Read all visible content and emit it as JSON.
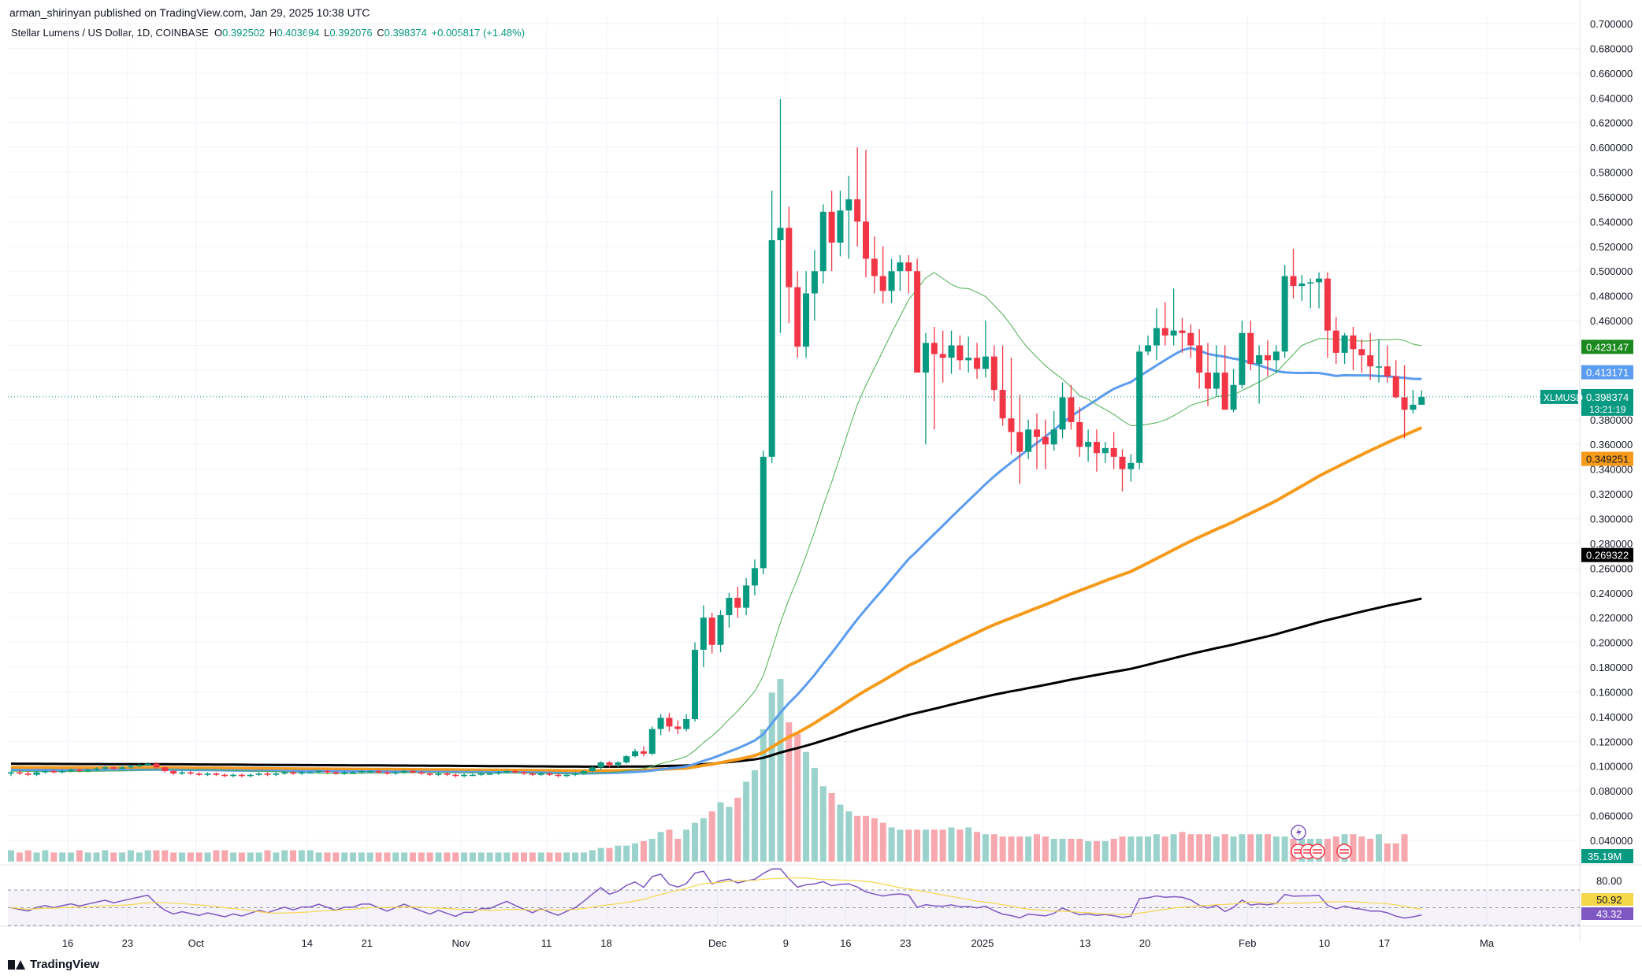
{
  "publisher_line": "arman_shirinyan published on TradingView.com, Jan 29, 2025 10:38 UTC",
  "legend": {
    "symbol": "Stellar Lumens / US Dollar, 1D, COINBASE",
    "open_label": "O",
    "open": "0.392502",
    "high_label": "H",
    "high": "0.403694",
    "low_label": "L",
    "low": "0.392076",
    "close_label": "C",
    "close": "0.398374",
    "change": "+0.005817 (+1.48%)"
  },
  "footer": {
    "brand": "TradingView"
  },
  "colors": {
    "up": "#089981",
    "down": "#F23645",
    "vol_up": "#9BD3CC",
    "vol_down": "#F6A8AE",
    "ma_thin": "#4CAF50",
    "ma_blue": "#5B9CF0",
    "ma_orange": "#F59A1A",
    "ma_black": "#000000",
    "rsi": "#7E57C2",
    "rsi_ma": "#F5D74A",
    "grid": "#F0F3FA"
  },
  "chart_data": {
    "type": "candlestick",
    "symbol": "XLMUSD",
    "y_axis": {
      "ylim": [
        0.06,
        0.7
      ],
      "ticks": [
        "0.700000",
        "0.680000",
        "0.660000",
        "0.640000",
        "0.620000",
        "0.600000",
        "0.580000",
        "0.560000",
        "0.540000",
        "0.520000",
        "0.500000",
        "0.480000",
        "0.460000",
        "0.440000",
        "0.420000",
        "0.400000",
        "0.380000",
        "0.360000",
        "0.340000",
        "0.320000",
        "0.300000",
        "0.280000",
        "0.260000",
        "0.240000",
        "0.220000",
        "0.200000",
        "0.180000",
        "0.160000",
        "0.140000",
        "0.120000",
        "0.100000",
        "0.080000",
        "0.060000",
        "0.040000"
      ]
    },
    "x_axis": {
      "labels": [
        "16",
        "23",
        "Oct",
        "14",
        "21",
        "Nov",
        "11",
        "18",
        "Dec",
        "9",
        "16",
        "23",
        "2025",
        "13",
        "20",
        "Feb",
        "10",
        "17",
        "Ma"
      ],
      "label_dates": [
        "2024-09-16",
        "2024-09-23",
        "2024-10-01",
        "2024-10-14",
        "2024-10-21",
        "2024-11-01",
        "2024-11-11",
        "2024-11-18",
        "2024-12-01",
        "2024-12-09",
        "2024-12-16",
        "2024-12-23",
        "2025-01-01",
        "2025-01-13",
        "2025-01-20",
        "2025-02-01",
        "2025-02-10",
        "2025-02-17",
        "2025-03-01"
      ],
      "range": [
        "2024-09-09",
        "2025-03-03"
      ]
    },
    "candles_ohlc": [
      [
        0.094,
        0.096,
        0.092,
        0.095
      ],
      [
        0.095,
        0.097,
        0.093,
        0.094
      ],
      [
        0.094,
        0.096,
        0.092,
        0.093
      ],
      [
        0.093,
        0.096,
        0.092,
        0.095
      ],
      [
        0.095,
        0.097,
        0.094,
        0.096
      ],
      [
        0.096,
        0.097,
        0.094,
        0.095
      ],
      [
        0.095,
        0.097,
        0.094,
        0.096
      ],
      [
        0.096,
        0.098,
        0.095,
        0.097
      ],
      [
        0.097,
        0.098,
        0.095,
        0.096
      ],
      [
        0.096,
        0.098,
        0.095,
        0.097
      ],
      [
        0.097,
        0.099,
        0.096,
        0.098
      ],
      [
        0.098,
        0.1,
        0.097,
        0.099
      ],
      [
        0.099,
        0.1,
        0.097,
        0.098
      ],
      [
        0.098,
        0.1,
        0.097,
        0.099
      ],
      [
        0.099,
        0.101,
        0.098,
        0.1
      ],
      [
        0.1,
        0.102,
        0.099,
        0.101
      ],
      [
        0.101,
        0.103,
        0.1,
        0.102
      ],
      [
        0.102,
        0.103,
        0.098,
        0.099
      ],
      [
        0.099,
        0.1,
        0.095,
        0.096
      ],
      [
        0.096,
        0.097,
        0.093,
        0.094
      ],
      [
        0.094,
        0.096,
        0.093,
        0.095
      ],
      [
        0.095,
        0.096,
        0.093,
        0.094
      ],
      [
        0.094,
        0.095,
        0.092,
        0.093
      ],
      [
        0.093,
        0.095,
        0.092,
        0.094
      ],
      [
        0.094,
        0.095,
        0.092,
        0.093
      ],
      [
        0.093,
        0.094,
        0.091,
        0.092
      ],
      [
        0.092,
        0.094,
        0.091,
        0.093
      ],
      [
        0.093,
        0.094,
        0.091,
        0.092
      ],
      [
        0.092,
        0.094,
        0.091,
        0.093
      ],
      [
        0.093,
        0.095,
        0.092,
        0.094
      ],
      [
        0.094,
        0.095,
        0.092,
        0.093
      ],
      [
        0.093,
        0.095,
        0.092,
        0.094
      ],
      [
        0.094,
        0.096,
        0.093,
        0.095
      ],
      [
        0.095,
        0.096,
        0.093,
        0.094
      ],
      [
        0.094,
        0.096,
        0.093,
        0.095
      ],
      [
        0.095,
        0.096,
        0.094,
        0.095
      ],
      [
        0.095,
        0.097,
        0.094,
        0.096
      ],
      [
        0.096,
        0.097,
        0.094,
        0.095
      ],
      [
        0.095,
        0.096,
        0.093,
        0.094
      ],
      [
        0.094,
        0.096,
        0.093,
        0.095
      ],
      [
        0.095,
        0.096,
        0.094,
        0.095
      ],
      [
        0.095,
        0.097,
        0.094,
        0.096
      ],
      [
        0.096,
        0.097,
        0.095,
        0.096
      ],
      [
        0.096,
        0.097,
        0.094,
        0.095
      ],
      [
        0.095,
        0.096,
        0.093,
        0.094
      ],
      [
        0.094,
        0.096,
        0.093,
        0.095
      ],
      [
        0.095,
        0.097,
        0.094,
        0.096
      ],
      [
        0.096,
        0.097,
        0.094,
        0.095
      ],
      [
        0.095,
        0.096,
        0.093,
        0.094
      ],
      [
        0.094,
        0.095,
        0.092,
        0.093
      ],
      [
        0.093,
        0.095,
        0.092,
        0.094
      ],
      [
        0.094,
        0.095,
        0.092,
        0.093
      ],
      [
        0.093,
        0.094,
        0.091,
        0.092
      ],
      [
        0.092,
        0.094,
        0.091,
        0.093
      ],
      [
        0.093,
        0.094,
        0.092,
        0.093
      ],
      [
        0.093,
        0.095,
        0.092,
        0.094
      ],
      [
        0.094,
        0.095,
        0.093,
        0.094
      ],
      [
        0.094,
        0.096,
        0.093,
        0.095
      ],
      [
        0.095,
        0.097,
        0.094,
        0.096
      ],
      [
        0.096,
        0.097,
        0.094,
        0.095
      ],
      [
        0.095,
        0.096,
        0.093,
        0.094
      ],
      [
        0.094,
        0.095,
        0.092,
        0.093
      ],
      [
        0.093,
        0.095,
        0.092,
        0.094
      ],
      [
        0.094,
        0.095,
        0.092,
        0.093
      ],
      [
        0.093,
        0.094,
        0.091,
        0.092
      ],
      [
        0.092,
        0.094,
        0.091,
        0.093
      ],
      [
        0.093,
        0.095,
        0.092,
        0.094
      ],
      [
        0.094,
        0.097,
        0.093,
        0.096
      ],
      [
        0.096,
        0.1,
        0.095,
        0.099
      ],
      [
        0.099,
        0.104,
        0.097,
        0.103
      ],
      [
        0.103,
        0.104,
        0.099,
        0.101
      ],
      [
        0.101,
        0.104,
        0.099,
        0.103
      ],
      [
        0.103,
        0.109,
        0.102,
        0.108
      ],
      [
        0.108,
        0.114,
        0.107,
        0.112
      ],
      [
        0.112,
        0.116,
        0.108,
        0.11
      ],
      [
        0.11,
        0.132,
        0.109,
        0.13
      ],
      [
        0.13,
        0.142,
        0.125,
        0.139
      ],
      [
        0.139,
        0.143,
        0.128,
        0.132
      ],
      [
        0.132,
        0.137,
        0.126,
        0.13
      ],
      [
        0.13,
        0.142,
        0.128,
        0.138
      ],
      [
        0.138,
        0.2,
        0.136,
        0.194
      ],
      [
        0.194,
        0.23,
        0.18,
        0.22
      ],
      [
        0.22,
        0.224,
        0.191,
        0.198
      ],
      [
        0.198,
        0.226,
        0.192,
        0.222
      ],
      [
        0.222,
        0.24,
        0.212,
        0.236
      ],
      [
        0.236,
        0.245,
        0.22,
        0.228
      ],
      [
        0.228,
        0.252,
        0.222,
        0.246
      ],
      [
        0.246,
        0.267,
        0.238,
        0.26
      ],
      [
        0.26,
        0.355,
        0.255,
        0.35
      ],
      [
        0.35,
        0.565,
        0.345,
        0.525
      ],
      [
        0.525,
        0.639,
        0.45,
        0.535
      ],
      [
        0.535,
        0.552,
        0.458,
        0.487
      ],
      [
        0.487,
        0.5,
        0.43,
        0.439
      ],
      [
        0.439,
        0.5,
        0.43,
        0.482
      ],
      [
        0.482,
        0.517,
        0.46,
        0.5
      ],
      [
        0.5,
        0.554,
        0.49,
        0.548
      ],
      [
        0.548,
        0.565,
        0.5,
        0.523
      ],
      [
        0.523,
        0.565,
        0.512,
        0.549
      ],
      [
        0.549,
        0.577,
        0.51,
        0.558
      ],
      [
        0.558,
        0.6,
        0.52,
        0.54
      ],
      [
        0.54,
        0.598,
        0.495,
        0.51
      ],
      [
        0.51,
        0.528,
        0.482,
        0.496
      ],
      [
        0.496,
        0.52,
        0.474,
        0.484
      ],
      [
        0.484,
        0.51,
        0.474,
        0.5
      ],
      [
        0.5,
        0.513,
        0.484,
        0.507
      ],
      [
        0.507,
        0.513,
        0.482,
        0.5
      ],
      [
        0.5,
        0.51,
        0.44,
        0.418
      ],
      [
        0.418,
        0.45,
        0.36,
        0.442
      ],
      [
        0.442,
        0.455,
        0.372,
        0.433
      ],
      [
        0.433,
        0.452,
        0.41,
        0.43
      ],
      [
        0.43,
        0.452,
        0.417,
        0.44
      ],
      [
        0.44,
        0.448,
        0.42,
        0.428
      ],
      [
        0.428,
        0.447,
        0.418,
        0.43
      ],
      [
        0.43,
        0.442,
        0.413,
        0.421
      ],
      [
        0.421,
        0.46,
        0.414,
        0.431
      ],
      [
        0.431,
        0.44,
        0.395,
        0.404
      ],
      [
        0.404,
        0.44,
        0.375,
        0.381
      ],
      [
        0.381,
        0.43,
        0.352,
        0.37
      ],
      [
        0.37,
        0.4,
        0.328,
        0.354
      ],
      [
        0.354,
        0.38,
        0.348,
        0.372
      ],
      [
        0.372,
        0.385,
        0.34,
        0.366
      ],
      [
        0.366,
        0.38,
        0.34,
        0.36
      ],
      [
        0.36,
        0.387,
        0.355,
        0.372
      ],
      [
        0.372,
        0.41,
        0.365,
        0.398
      ],
      [
        0.398,
        0.408,
        0.372,
        0.378
      ],
      [
        0.378,
        0.39,
        0.35,
        0.358
      ],
      [
        0.358,
        0.372,
        0.346,
        0.362
      ],
      [
        0.362,
        0.372,
        0.338,
        0.353
      ],
      [
        0.353,
        0.362,
        0.345,
        0.357
      ],
      [
        0.357,
        0.37,
        0.34,
        0.35
      ],
      [
        0.35,
        0.356,
        0.322,
        0.34
      ],
      [
        0.34,
        0.352,
        0.33,
        0.345
      ],
      [
        0.345,
        0.44,
        0.34,
        0.435
      ],
      [
        0.435,
        0.448,
        0.432,
        0.44
      ],
      [
        0.44,
        0.47,
        0.428,
        0.454
      ],
      [
        0.454,
        0.475,
        0.44,
        0.448
      ],
      [
        0.448,
        0.486,
        0.44,
        0.452
      ],
      [
        0.452,
        0.462,
        0.434,
        0.45
      ],
      [
        0.45,
        0.457,
        0.43,
        0.44
      ],
      [
        0.44,
        0.453,
        0.405,
        0.418
      ],
      [
        0.418,
        0.442,
        0.391,
        0.405
      ],
      [
        0.405,
        0.44,
        0.399,
        0.418
      ],
      [
        0.418,
        0.44,
        0.395,
        0.388
      ],
      [
        0.388,
        0.421,
        0.386,
        0.408
      ],
      [
        0.408,
        0.46,
        0.405,
        0.45
      ],
      [
        0.45,
        0.46,
        0.42,
        0.425
      ],
      [
        0.425,
        0.44,
        0.393,
        0.432
      ],
      [
        0.432,
        0.444,
        0.415,
        0.428
      ],
      [
        0.428,
        0.44,
        0.418,
        0.435
      ],
      [
        0.435,
        0.505,
        0.43,
        0.496
      ],
      [
        0.496,
        0.518,
        0.478,
        0.488
      ],
      [
        0.488,
        0.497,
        0.476,
        0.49
      ],
      [
        0.49,
        0.494,
        0.47,
        0.491
      ],
      [
        0.491,
        0.499,
        0.47,
        0.494
      ],
      [
        0.494,
        0.499,
        0.43,
        0.452
      ],
      [
        0.452,
        0.463,
        0.425,
        0.434
      ],
      [
        0.434,
        0.45,
        0.425,
        0.448
      ],
      [
        0.448,
        0.455,
        0.42,
        0.437
      ],
      [
        0.437,
        0.445,
        0.418,
        0.432
      ],
      [
        0.432,
        0.45,
        0.412,
        0.423
      ],
      [
        0.423,
        0.445,
        0.41,
        0.423
      ],
      [
        0.423,
        0.44,
        0.41,
        0.415
      ],
      [
        0.415,
        0.428,
        0.397,
        0.398
      ],
      [
        0.398,
        0.424,
        0.365,
        0.388
      ],
      [
        0.388,
        0.404,
        0.385,
        0.392
      ],
      [
        0.392,
        0.403694,
        0.392076,
        0.398374
      ]
    ],
    "volume": [
      5,
      4,
      5,
      4,
      5,
      4,
      4,
      4,
      5,
      4,
      4,
      5,
      4,
      4,
      5,
      4,
      5,
      5,
      5,
      4,
      4,
      4,
      4,
      4,
      5,
      5,
      4,
      4,
      4,
      4,
      5,
      4,
      5,
      5,
      5,
      5,
      4,
      4,
      4,
      4,
      4,
      4,
      4,
      4,
      4,
      4,
      4,
      4,
      4,
      4,
      4,
      4,
      4,
      4,
      4,
      4,
      4,
      4,
      4,
      4,
      4,
      4,
      4,
      4,
      4,
      4,
      4,
      4,
      5,
      6,
      6,
      7,
      7,
      8,
      9,
      10,
      13,
      14,
      10,
      14,
      17,
      19,
      22,
      26,
      24,
      28,
      35,
      40,
      58,
      74,
      80,
      61,
      56,
      48,
      41,
      33,
      30,
      25,
      22,
      20,
      20,
      19,
      17,
      15,
      14,
      14,
      14,
      14,
      14,
      14,
      15,
      14,
      15,
      13,
      12,
      12,
      11,
      11,
      11,
      11,
      12,
      11,
      10,
      10,
      10,
      10,
      9,
      9,
      9,
      10,
      11,
      11,
      11,
      11,
      12,
      11,
      12,
      13,
      12,
      12,
      12,
      11,
      12,
      11,
      12,
      12,
      12,
      12,
      11,
      11,
      10,
      10,
      10,
      10,
      10,
      11,
      12,
      12,
      11,
      10,
      12,
      8,
      8,
      12
    ],
    "moving_averages": [
      {
        "line": "thin-green",
        "last": 0.423147
      },
      {
        "line": "blue",
        "last": 0.413171
      },
      {
        "line": "orange",
        "last": 0.349251
      },
      {
        "line": "black",
        "last": 0.269322
      }
    ],
    "last_price": {
      "symbol": "XLMUSD",
      "value": "0.398374",
      "countdown": "13:21:19"
    },
    "ma_labels": [
      "0.423147",
      "0.413171",
      "0.349251",
      "0.269322"
    ],
    "volume_label": "35.19M",
    "rsi": {
      "upper": "80.00",
      "values_labels": [
        "50.92",
        "43.32"
      ],
      "levels": [
        70,
        50,
        30
      ],
      "ylim": [
        0,
        100
      ]
    }
  }
}
